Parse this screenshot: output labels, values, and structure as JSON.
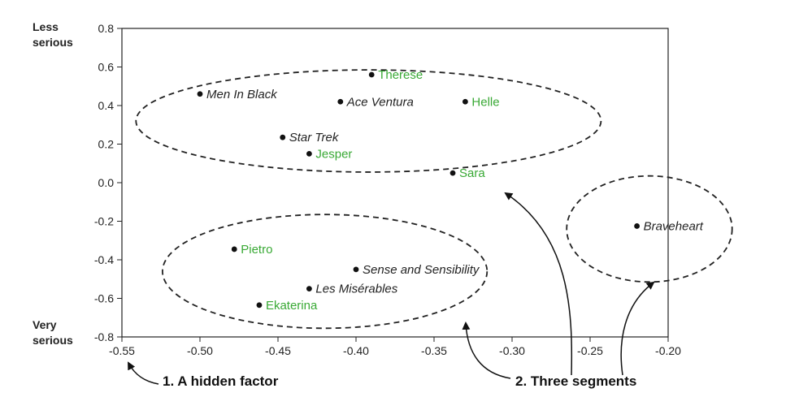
{
  "chart_data": {
    "type": "scatter",
    "xlim": [
      -0.55,
      -0.2
    ],
    "ylim": [
      -0.8,
      0.8
    ],
    "x_ticks": [
      "-0.55",
      "-0.50",
      "-0.45",
      "-0.40",
      "-0.35",
      "-0.30",
      "-0.25",
      "-0.20"
    ],
    "y_ticks": [
      "0.8",
      "0.6",
      "0.4",
      "0.2",
      "0.0",
      "-0.2",
      "-0.4",
      "-0.6",
      "-0.8"
    ],
    "y_top_label": [
      "Less",
      "serious"
    ],
    "y_bottom_label": [
      "Very",
      "serious"
    ],
    "grid": false,
    "colors": {
      "movie": "#222222",
      "user": "#39a935",
      "outline": "#222222"
    },
    "points": [
      {
        "label": "Men In Black",
        "x": -0.5,
        "y": 0.46,
        "kind": "movie"
      },
      {
        "label": "Therese",
        "x": -0.39,
        "y": 0.56,
        "kind": "user"
      },
      {
        "label": "Ace Ventura",
        "x": -0.41,
        "y": 0.42,
        "kind": "movie"
      },
      {
        "label": "Helle",
        "x": -0.33,
        "y": 0.42,
        "kind": "user"
      },
      {
        "label": "Star Trek",
        "x": -0.447,
        "y": 0.235,
        "kind": "movie"
      },
      {
        "label": "Jesper",
        "x": -0.43,
        "y": 0.15,
        "kind": "user"
      },
      {
        "label": "Sara",
        "x": -0.338,
        "y": 0.05,
        "kind": "user"
      },
      {
        "label": "Braveheart",
        "x": -0.22,
        "y": -0.225,
        "kind": "movie"
      },
      {
        "label": "Pietro",
        "x": -0.478,
        "y": -0.345,
        "kind": "user"
      },
      {
        "label": "Sense and Sensibility",
        "x": -0.4,
        "y": -0.45,
        "kind": "movie"
      },
      {
        "label": "Les Misérables",
        "x": -0.43,
        "y": -0.55,
        "kind": "movie"
      },
      {
        "label": "Ekaterina",
        "x": -0.462,
        "y": -0.635,
        "kind": "user"
      }
    ],
    "segments": [
      {
        "cx": -0.392,
        "cy": 0.32,
        "rx": 0.149,
        "ry": 0.265
      },
      {
        "cx": -0.42,
        "cy": -0.46,
        "rx": 0.104,
        "ry": 0.295
      },
      {
        "cx": -0.212,
        "cy": -0.24,
        "rx": 0.053,
        "ry": 0.275
      }
    ],
    "annotations": [
      {
        "text": "1. A hidden factor"
      },
      {
        "text": "2. Three segments"
      }
    ]
  }
}
